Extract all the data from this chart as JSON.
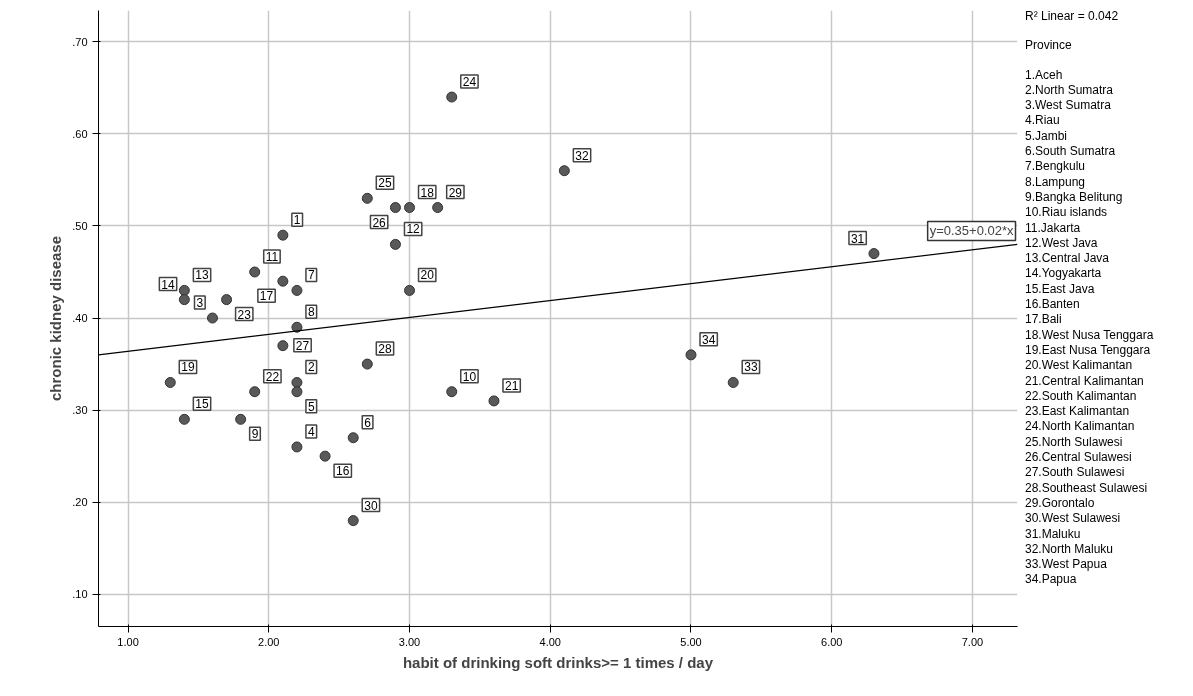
{
  "chart_data": {
    "type": "scatter",
    "xlabel": "habit of drinking soft drinks>= 1 times / day",
    "ylabel": "chronic kidney disease",
    "xlim": [
      0.79,
      7.32
    ],
    "ylim": [
      0.065,
      0.734
    ],
    "xticks": [
      {
        "value": 1,
        "label": "1.00"
      },
      {
        "value": 2,
        "label": "2.00"
      },
      {
        "value": 3,
        "label": "3.00"
      },
      {
        "value": 4,
        "label": "4.00"
      },
      {
        "value": 5,
        "label": "5.00"
      },
      {
        "value": 6,
        "label": "6.00"
      },
      {
        "value": 7,
        "label": "7.00"
      }
    ],
    "yticks": [
      {
        "value": 0.1,
        "label": ".10"
      },
      {
        "value": 0.2,
        "label": ".20"
      },
      {
        "value": 0.3,
        "label": ".30"
      },
      {
        "value": 0.4,
        "label": ".40"
      },
      {
        "value": 0.5,
        "label": ".50"
      },
      {
        "value": 0.6,
        "label": ".60"
      },
      {
        "value": 0.7,
        "label": ".70"
      }
    ],
    "grid": true,
    "marker": "circle",
    "series": [
      {
        "color": "#595959",
        "x": [
          2.1,
          2.2,
          1.6,
          2.2,
          2.2,
          2.6,
          2.2,
          2.2,
          1.8,
          3.3,
          1.9,
          2.9,
          1.4,
          1.4,
          1.4,
          2.4,
          2.1,
          3.0,
          1.3,
          3.0,
          3.6,
          1.9,
          1.7,
          3.3,
          2.7,
          2.9,
          2.1,
          2.7,
          3.2,
          2.6,
          6.3,
          4.1,
          5.3,
          5.0
        ],
        "values": [
          0.49,
          0.33,
          0.4,
          0.26,
          0.32,
          0.27,
          0.43,
          0.39,
          0.29,
          0.32,
          0.45,
          0.48,
          0.43,
          0.42,
          0.29,
          0.25,
          0.44,
          0.52,
          0.33,
          0.43,
          0.31,
          0.32,
          0.42,
          0.64,
          0.53,
          0.52,
          0.37,
          0.35,
          0.52,
          0.18,
          0.47,
          0.56,
          0.33,
          0.36
        ]
      },
      {
        "type": "line",
        "color": "#000000",
        "marker": "none",
        "x": [
          0.79,
          7.32
        ],
        "values": [
          0.36,
          0.48
        ]
      }
    ],
    "annotations": [
      {
        "text": "y=0.35+0.02*x",
        "x": 7.32,
        "y": 0.48
      },
      {
        "text": "1",
        "x": 2.1,
        "y": 0.49
      },
      {
        "text": "2",
        "x": 2.2,
        "y": 0.33
      },
      {
        "text": "3",
        "x": 1.6,
        "y": 0.4
      },
      {
        "text": "4",
        "x": 2.2,
        "y": 0.26
      },
      {
        "text": "5",
        "x": 2.2,
        "y": 0.32
      },
      {
        "text": "6",
        "x": 2.6,
        "y": 0.27
      },
      {
        "text": "7",
        "x": 2.2,
        "y": 0.43
      },
      {
        "text": "8",
        "x": 2.2,
        "y": 0.39
      },
      {
        "text": "9",
        "x": 1.8,
        "y": 0.29
      },
      {
        "text": "10",
        "x": 3.3,
        "y": 0.32
      },
      {
        "text": "11",
        "x": 1.9,
        "y": 0.45
      },
      {
        "text": "12",
        "x": 2.9,
        "y": 0.48
      },
      {
        "text": "13",
        "x": 1.4,
        "y": 0.43
      },
      {
        "text": "14",
        "x": 1.4,
        "y": 0.42
      },
      {
        "text": "15",
        "x": 1.4,
        "y": 0.29
      },
      {
        "text": "16",
        "x": 2.4,
        "y": 0.25
      },
      {
        "text": "17",
        "x": 2.1,
        "y": 0.44
      },
      {
        "text": "18",
        "x": 3.0,
        "y": 0.52
      },
      {
        "text": "19",
        "x": 1.3,
        "y": 0.33
      },
      {
        "text": "20",
        "x": 3.0,
        "y": 0.43
      },
      {
        "text": "21",
        "x": 3.6,
        "y": 0.31
      },
      {
        "text": "22",
        "x": 1.9,
        "y": 0.32
      },
      {
        "text": "23",
        "x": 1.7,
        "y": 0.42
      },
      {
        "text": "24",
        "x": 3.3,
        "y": 0.64
      },
      {
        "text": "25",
        "x": 2.7,
        "y": 0.53
      },
      {
        "text": "26",
        "x": 2.9,
        "y": 0.52
      },
      {
        "text": "27",
        "x": 2.1,
        "y": 0.37
      },
      {
        "text": "28",
        "x": 2.7,
        "y": 0.35
      },
      {
        "text": "29",
        "x": 3.2,
        "y": 0.52
      },
      {
        "text": "30",
        "x": 2.6,
        "y": 0.18
      },
      {
        "text": "31",
        "x": 6.3,
        "y": 0.47
      },
      {
        "text": "32",
        "x": 4.1,
        "y": 0.56
      },
      {
        "text": "33",
        "x": 5.3,
        "y": 0.33
      },
      {
        "text": "34",
        "x": 5.0,
        "y": 0.36
      },
      "R² Linear = 0.042",
      "Province",
      "1.Aceh",
      "2.North Sumatra",
      "3.West Sumatra",
      "4.Riau",
      "5.Jambi",
      "6.South Sumatra",
      "7.Bengkulu",
      "8.Lampung",
      "9.Bangka Belitung",
      "10.Riau islands",
      "11.Jakarta",
      "12.West Java",
      "13.Central Java",
      "14.Yogyakarta",
      "15.East Java",
      "16.Banten",
      "17.Bali",
      "18.West Nusa Tenggara",
      "19.East Nusa Tenggara",
      "20.West Kalimantan",
      "21.Central Kalimantan",
      "22.South Kalimantan",
      "23.East Kalimantan",
      "24.North Kalimantan",
      "25.North Sulawesi",
      "26.Central Sulawesi",
      "27.South Sulawesi",
      "28.Southeast Sulawesi",
      "29.Gorontalo",
      "30.West Sulawesi",
      "31.Maluku",
      "32.North Maluku",
      "33.West Papua",
      "34.Papua"
    ]
  }
}
